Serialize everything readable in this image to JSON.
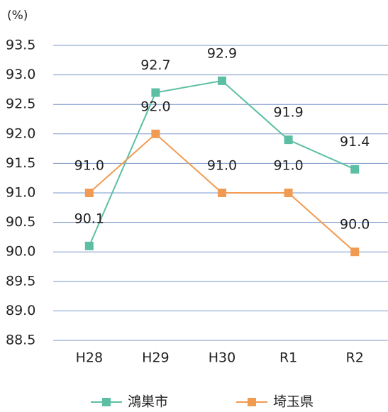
{
  "chart_data": {
    "type": "line",
    "unit": "(%)",
    "categories": [
      "H28",
      "H29",
      "H30",
      "R1",
      "R2"
    ],
    "series": [
      {
        "name": "鴻巣市",
        "color": "#5cbfa4",
        "values": [
          90.1,
          92.7,
          92.9,
          91.9,
          91.4
        ],
        "value_labels": [
          "90.1",
          "92.7",
          "92.9",
          "91.9",
          "91.4"
        ]
      },
      {
        "name": "埼玉県",
        "color": "#f09a52",
        "values": [
          91.0,
          92.0,
          91.0,
          91.0,
          90.0
        ],
        "value_labels": [
          "91.0",
          "92.0",
          "91.0",
          "91.0",
          "90.0"
        ]
      }
    ],
    "ylim": [
      88.5,
      93.5
    ],
    "yticks": [
      88.5,
      {
        "value": 89,
        "label": "89.0"
      },
      89.5,
      {
        "value": 90,
        "label": "90.0"
      },
      90.5,
      {
        "value": 91,
        "label": "91.0"
      },
      91.5,
      {
        "value": 92,
        "label": "92.0"
      },
      92.5,
      {
        "value": 93,
        "label": "93.0"
      },
      93.5
    ],
    "grid": true,
    "legend": "bottom"
  }
}
